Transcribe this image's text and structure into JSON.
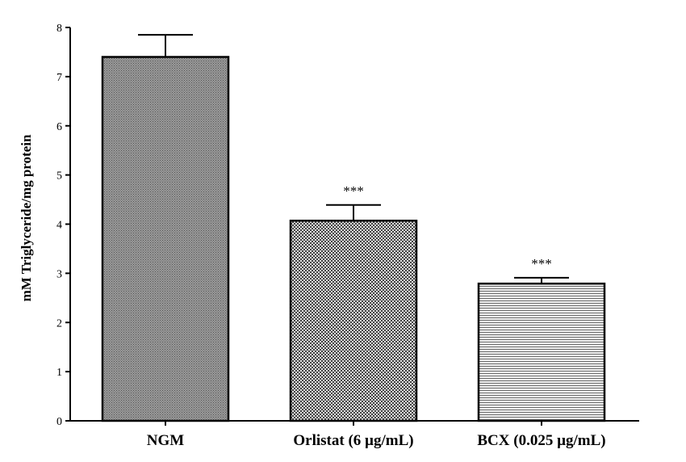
{
  "chart_data": {
    "type": "bar",
    "categories": [
      "NGM",
      "Orlistat (6 µg/mL)",
      "BCX (0.025  µg/mL)"
    ],
    "values": [
      7.4,
      4.07,
      2.79
    ],
    "errors": [
      0.45,
      0.32,
      0.12
    ],
    "significance": [
      "",
      "***",
      "***"
    ],
    "patterns": [
      "fine-crosshatch",
      "checker",
      "horizontal-lines"
    ],
    "ylabel": "mM Triglyceride/mg protein",
    "xlabel": "",
    "ylim": [
      0,
      8
    ],
    "yticks": [
      "0",
      "1",
      "2",
      "3",
      "4",
      "5",
      "6",
      "7",
      "8"
    ],
    "grid": false
  }
}
